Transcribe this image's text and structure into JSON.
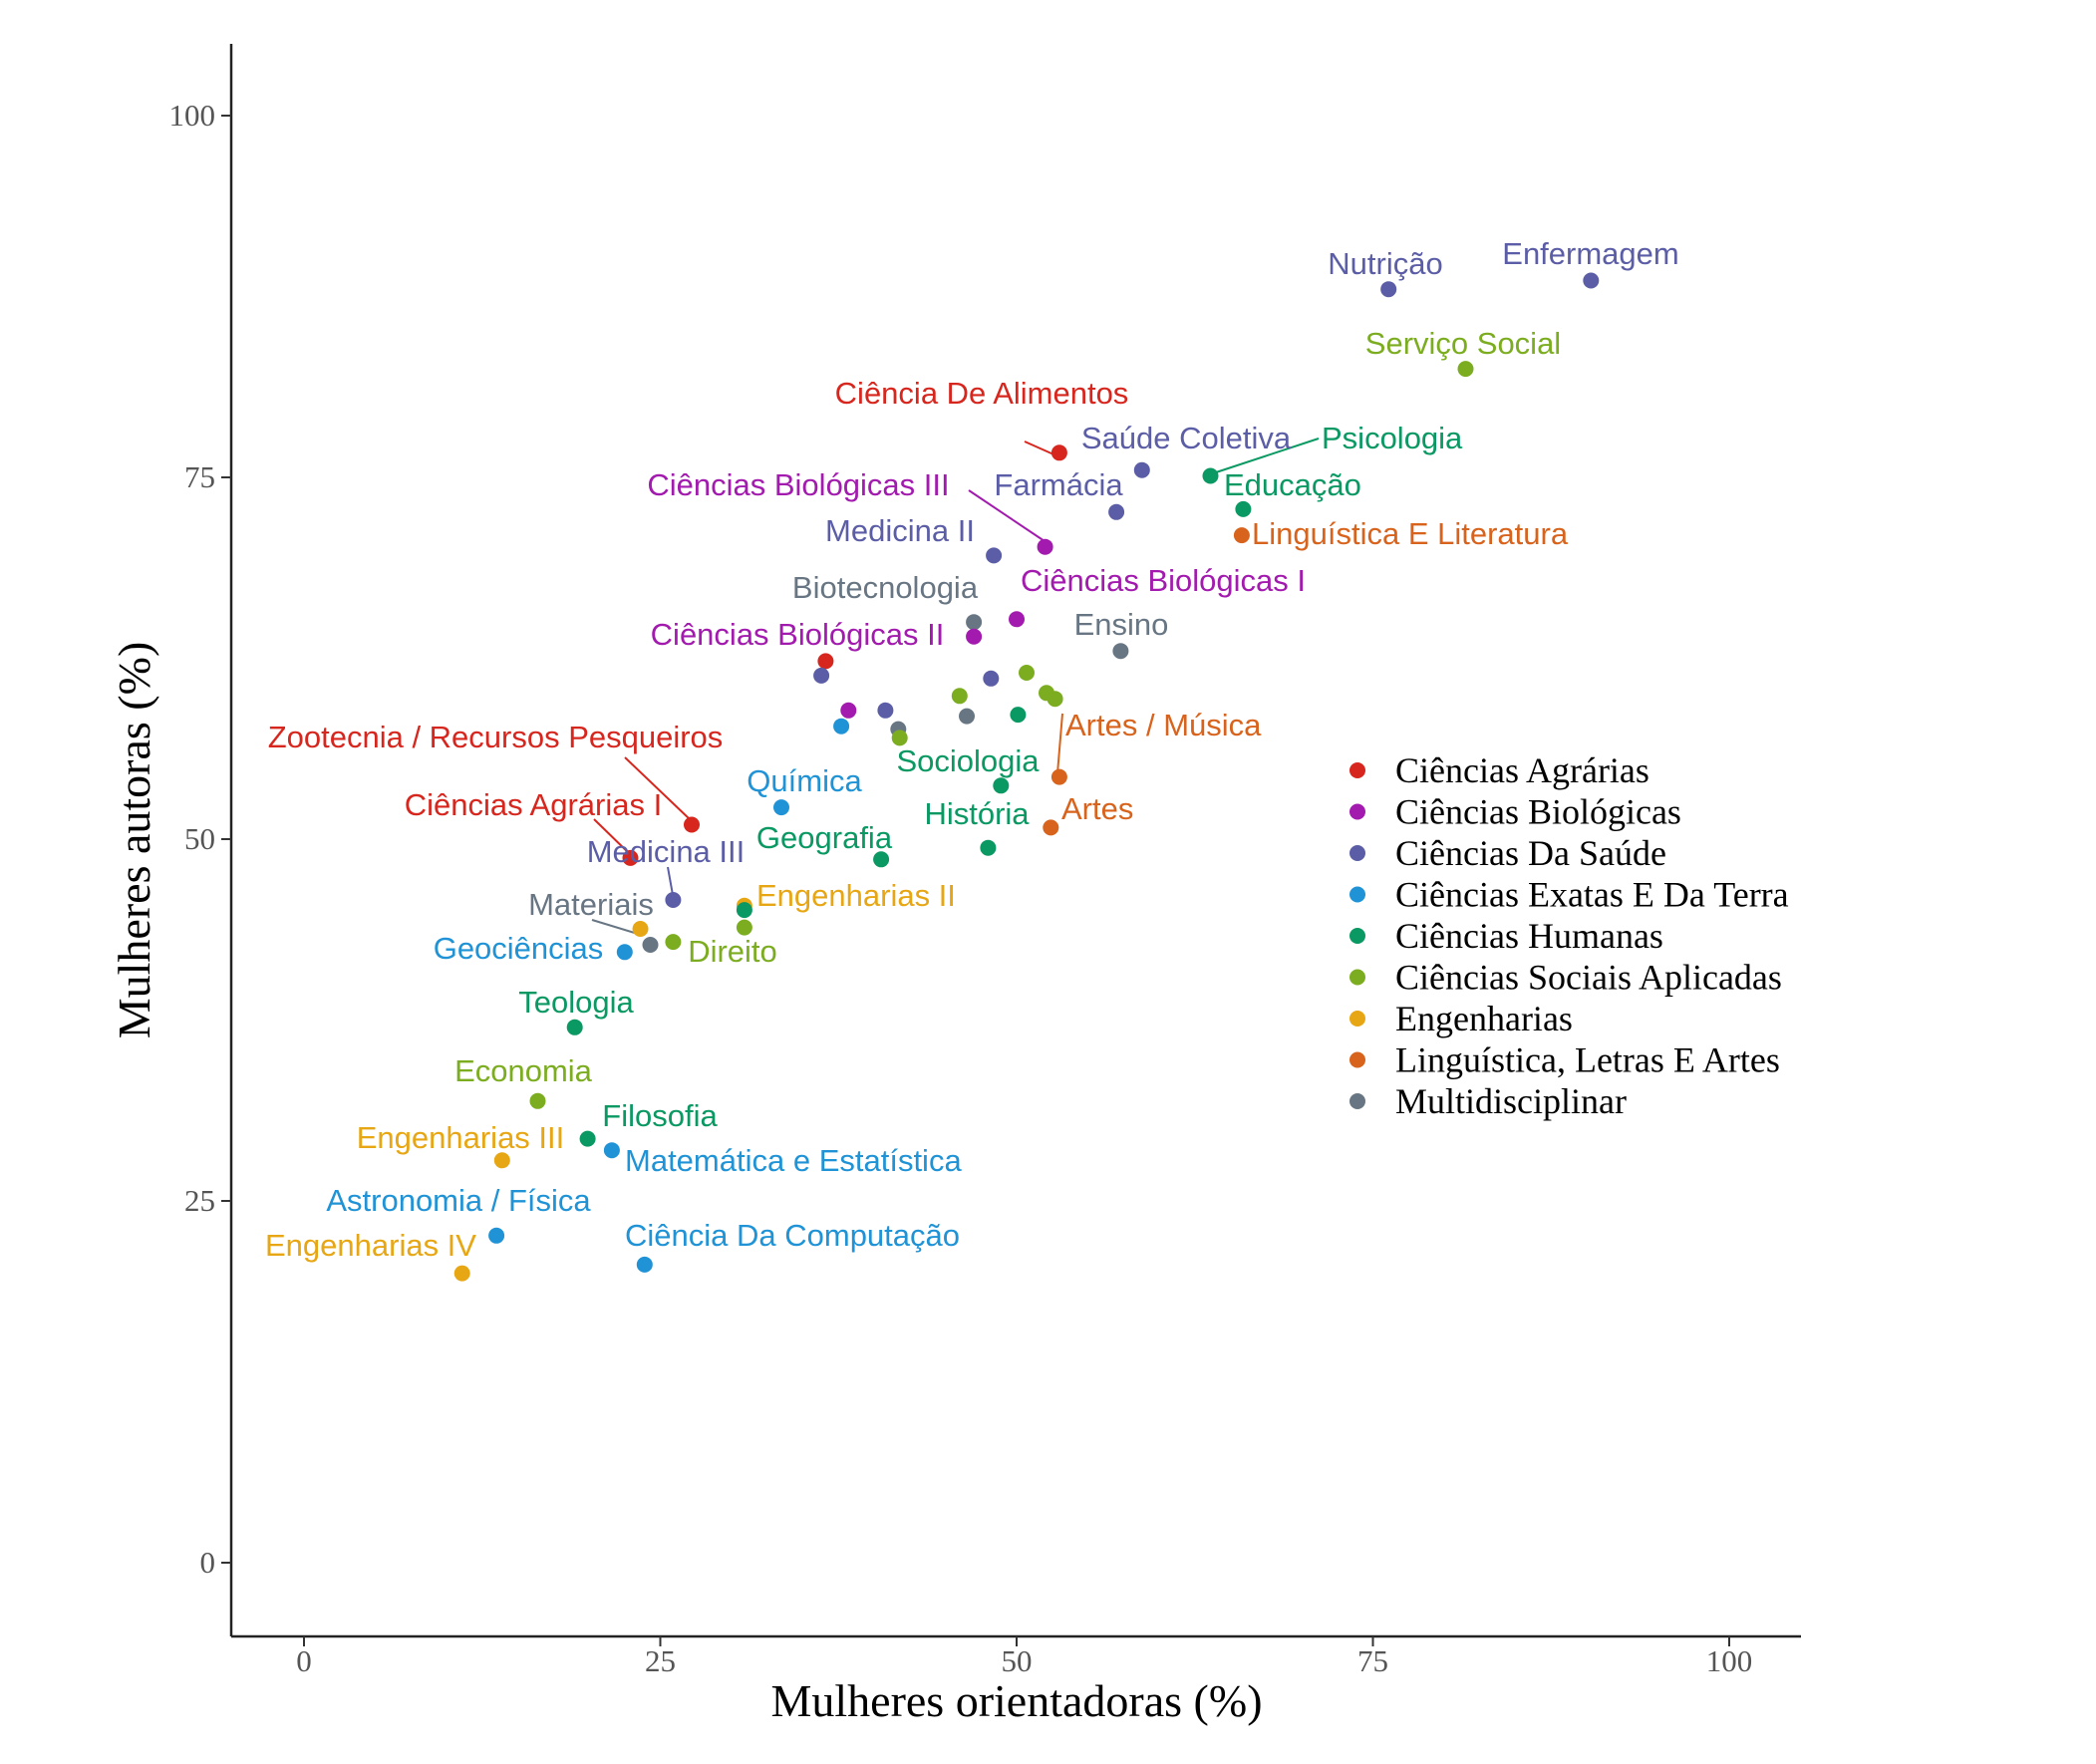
{
  "chart_data": {
    "type": "scatter",
    "title": "",
    "xlabel": "Mulheres orientadoras (%)",
    "ylabel": "Mulheres autoras (%)",
    "xlim": [
      -5,
      105
    ],
    "ylim": [
      -5,
      105
    ],
    "xticks": [
      0,
      25,
      50,
      75,
      100
    ],
    "yticks": [
      0,
      25,
      50,
      75,
      100
    ],
    "grid": false,
    "legend_position": "right",
    "categories": [
      {
        "name": "Ciências Agrárias",
        "color": "#D7261E"
      },
      {
        "name": "Ciências Biológicas",
        "color": "#A21AAE"
      },
      {
        "name": "Ciências Da Saúde",
        "color": "#5B5EA6"
      },
      {
        "name": "Ciências Exatas E Da Terra",
        "color": "#1F93D6"
      },
      {
        "name": "Ciências Humanas",
        "color": "#0A9863"
      },
      {
        "name": "Ciências Sociais Aplicadas",
        "color": "#7CAD21"
      },
      {
        "name": "Engenharias",
        "color": "#E7A614"
      },
      {
        "name": "Linguística, Letras E Artes",
        "color": "#D8631C"
      },
      {
        "name": "Multidisciplinar",
        "color": "#687684"
      }
    ],
    "points": [
      {
        "x": 90.3,
        "y": 88.6,
        "cat": 2,
        "label": "Enfermagem"
      },
      {
        "x": 76.1,
        "y": 88.0,
        "cat": 2,
        "label": "Nutrição"
      },
      {
        "x": 81.5,
        "y": 82.5,
        "cat": 5,
        "label": "Serviço Social"
      },
      {
        "x": 53.0,
        "y": 76.7,
        "cat": 0,
        "label": "Ciência De Alimentos"
      },
      {
        "x": 58.8,
        "y": 75.5,
        "cat": 2,
        "label": "Saúde Coletiva"
      },
      {
        "x": 63.6,
        "y": 75.1,
        "cat": 4,
        "label": "Psicologia"
      },
      {
        "x": 65.9,
        "y": 72.8,
        "cat": 4,
        "label": "Educação"
      },
      {
        "x": 57.0,
        "y": 72.6,
        "cat": 2,
        "label": "Farmácia"
      },
      {
        "x": 65.8,
        "y": 71.0,
        "cat": 7,
        "label": "Linguística E Literatura"
      },
      {
        "x": 52.0,
        "y": 70.2,
        "cat": 1,
        "label": "Ciências Biológicas III"
      },
      {
        "x": 48.4,
        "y": 69.6,
        "cat": 2,
        "label": "Medicina II"
      },
      {
        "x": 50.0,
        "y": 65.2,
        "cat": 1,
        "label": "Ciências Biológicas I"
      },
      {
        "x": 47.0,
        "y": 65.0,
        "cat": 8,
        "label": "Biotecnologia"
      },
      {
        "x": 47.0,
        "y": 64.0,
        "cat": 1,
        "label": "Ciências Biológicas II"
      },
      {
        "x": 57.3,
        "y": 63.0,
        "cat": 8,
        "label": "Ensino"
      },
      {
        "x": 36.6,
        "y": 62.3,
        "cat": 0,
        "label": ""
      },
      {
        "x": 36.3,
        "y": 61.3,
        "cat": 2,
        "label": ""
      },
      {
        "x": 50.7,
        "y": 61.5,
        "cat": 5,
        "label": ""
      },
      {
        "x": 48.2,
        "y": 61.1,
        "cat": 2,
        "label": ""
      },
      {
        "x": 52.1,
        "y": 60.1,
        "cat": 5,
        "label": ""
      },
      {
        "x": 52.7,
        "y": 59.7,
        "cat": 5,
        "label": ""
      },
      {
        "x": 46.0,
        "y": 59.9,
        "cat": 5,
        "label": ""
      },
      {
        "x": 38.2,
        "y": 58.9,
        "cat": 1,
        "label": ""
      },
      {
        "x": 40.8,
        "y": 58.9,
        "cat": 2,
        "label": ""
      },
      {
        "x": 50.1,
        "y": 58.6,
        "cat": 4,
        "label": ""
      },
      {
        "x": 46.5,
        "y": 58.5,
        "cat": 8,
        "label": ""
      },
      {
        "x": 37.7,
        "y": 57.8,
        "cat": 3,
        "label": ""
      },
      {
        "x": 41.7,
        "y": 57.6,
        "cat": 8,
        "label": ""
      },
      {
        "x": 41.8,
        "y": 57.0,
        "cat": 5,
        "label": ""
      },
      {
        "x": 53.0,
        "y": 54.3,
        "cat": 7,
        "label": "Artes / Música"
      },
      {
        "x": 48.9,
        "y": 53.7,
        "cat": 4,
        "label": "Sociologia"
      },
      {
        "x": 33.5,
        "y": 52.2,
        "cat": 3,
        "label": "Química"
      },
      {
        "x": 27.2,
        "y": 51.0,
        "cat": 0,
        "label": "Zootecnia / Recursos Pesqueiros"
      },
      {
        "x": 52.4,
        "y": 50.8,
        "cat": 7,
        "label": "Artes"
      },
      {
        "x": 48.0,
        "y": 49.4,
        "cat": 4,
        "label": "História"
      },
      {
        "x": 22.9,
        "y": 48.7,
        "cat": 0,
        "label": "Ciências Agrárias I"
      },
      {
        "x": 40.5,
        "y": 48.6,
        "cat": 4,
        "label": "Geografia"
      },
      {
        "x": 25.9,
        "y": 45.8,
        "cat": 2,
        "label": "Medicina III"
      },
      {
        "x": 30.9,
        "y": 45.4,
        "cat": 6,
        "label": "Engenharias II"
      },
      {
        "x": 30.9,
        "y": 45.1,
        "cat": 4,
        "label": ""
      },
      {
        "x": 23.6,
        "y": 43.8,
        "cat": 6,
        "label": ""
      },
      {
        "x": 30.9,
        "y": 43.9,
        "cat": 5,
        "label": ""
      },
      {
        "x": 24.3,
        "y": 42.7,
        "cat": 8,
        "label": "Materiais"
      },
      {
        "x": 25.9,
        "y": 42.9,
        "cat": 5,
        "label": "Direito"
      },
      {
        "x": 22.5,
        "y": 42.2,
        "cat": 3,
        "label": "Geociências"
      },
      {
        "x": 19.0,
        "y": 37.0,
        "cat": 4,
        "label": "Teologia"
      },
      {
        "x": 16.4,
        "y": 31.9,
        "cat": 5,
        "label": "Economia"
      },
      {
        "x": 19.9,
        "y": 29.3,
        "cat": 4,
        "label": "Filosofia"
      },
      {
        "x": 21.6,
        "y": 28.5,
        "cat": 3,
        "label": "Matemática e Estatística"
      },
      {
        "x": 13.9,
        "y": 27.8,
        "cat": 6,
        "label": "Engenharias III"
      },
      {
        "x": 13.5,
        "y": 22.6,
        "cat": 3,
        "label": "Astronomia / Física"
      },
      {
        "x": 23.9,
        "y": 20.6,
        "cat": 3,
        "label": "Ciência Da Computação"
      },
      {
        "x": 11.1,
        "y": 20.0,
        "cat": 6,
        "label": "Engenharias IV"
      }
    ]
  }
}
